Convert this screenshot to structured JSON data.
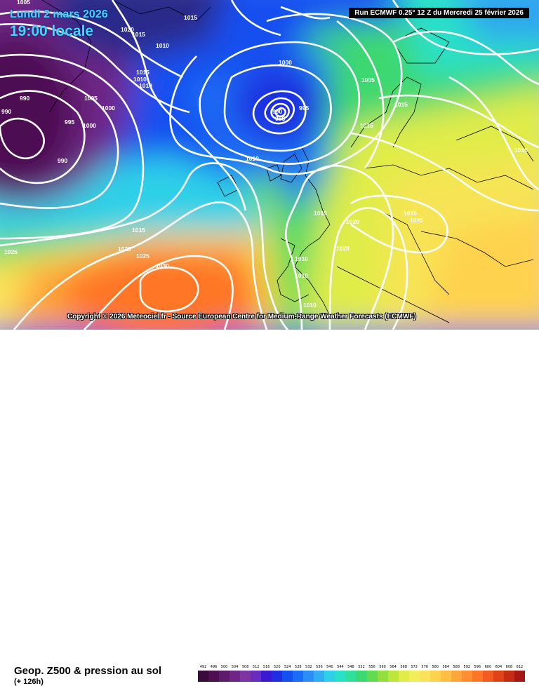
{
  "header": {
    "date": "Lundi 2 mars 2026",
    "time": "19:00 locale",
    "run": "Run ECMWF 0.25° 12 Z du Mercredi 25 février 2026"
  },
  "copyright": "Copyright © 2026 Meteociel.fr - Source European Centre for Medium-Range Weather Forecasts (ECMWF)",
  "footer": {
    "title": "Geop. Z500 & pression au sol",
    "subtitle": "(+ 126h)"
  },
  "legend": {
    "labels": [
      "492",
      "496",
      "500",
      "504",
      "508",
      "512",
      "516",
      "520",
      "524",
      "528",
      "532",
      "536",
      "540",
      "544",
      "548",
      "552",
      "556",
      "560",
      "564",
      "568",
      "572",
      "576",
      "580",
      "584",
      "588",
      "592",
      "596",
      "600",
      "604",
      "608",
      "612"
    ],
    "colors": [
      "#3a0a3a",
      "#4d0f52",
      "#5e1a6b",
      "#6e2585",
      "#7d35a0",
      "#6a2bc0",
      "#3a1ad0",
      "#1f2ee0",
      "#1450f0",
      "#1a6ef5",
      "#2a8ef5",
      "#31aef0",
      "#2ed0e8",
      "#29e0c8",
      "#2ee09a",
      "#3ed870",
      "#62dc4e",
      "#92e040",
      "#bde63a",
      "#e0ec48",
      "#f2ee5a",
      "#fae25a",
      "#ffd24e",
      "#ffbe44",
      "#ffa63a",
      "#ff8e30",
      "#ff7628",
      "#f25c20",
      "#e04318",
      "#c52c14",
      "#a81812"
    ]
  },
  "isobars": [
    {
      "label": "1005"
    },
    {
      "label": "1020"
    },
    {
      "label": "1015"
    },
    {
      "label": "1015"
    },
    {
      "label": "1010"
    },
    {
      "label": "1015"
    },
    {
      "label": "1010"
    },
    {
      "label": "1010"
    },
    {
      "label": "1005"
    },
    {
      "label": "1000"
    },
    {
      "label": "990"
    },
    {
      "label": "990"
    },
    {
      "label": "995"
    },
    {
      "label": "1000"
    },
    {
      "label": "990"
    },
    {
      "label": "1000"
    },
    {
      "label": "1005"
    },
    {
      "label": "990"
    },
    {
      "label": "985"
    },
    {
      "label": "995"
    },
    {
      "label": "1010"
    },
    {
      "label": "1015"
    },
    {
      "label": "1015"
    },
    {
      "label": "1015"
    },
    {
      "label": "1015"
    },
    {
      "label": "1015"
    },
    {
      "label": "1025"
    },
    {
      "label": "1020"
    },
    {
      "label": "1020"
    },
    {
      "label": "1010"
    },
    {
      "label": "1010"
    },
    {
      "label": "1010"
    },
    {
      "label": "1015"
    },
    {
      "label": "1020"
    },
    {
      "label": "1025"
    },
    {
      "label": "1030"
    },
    {
      "label": "1025"
    }
  ]
}
